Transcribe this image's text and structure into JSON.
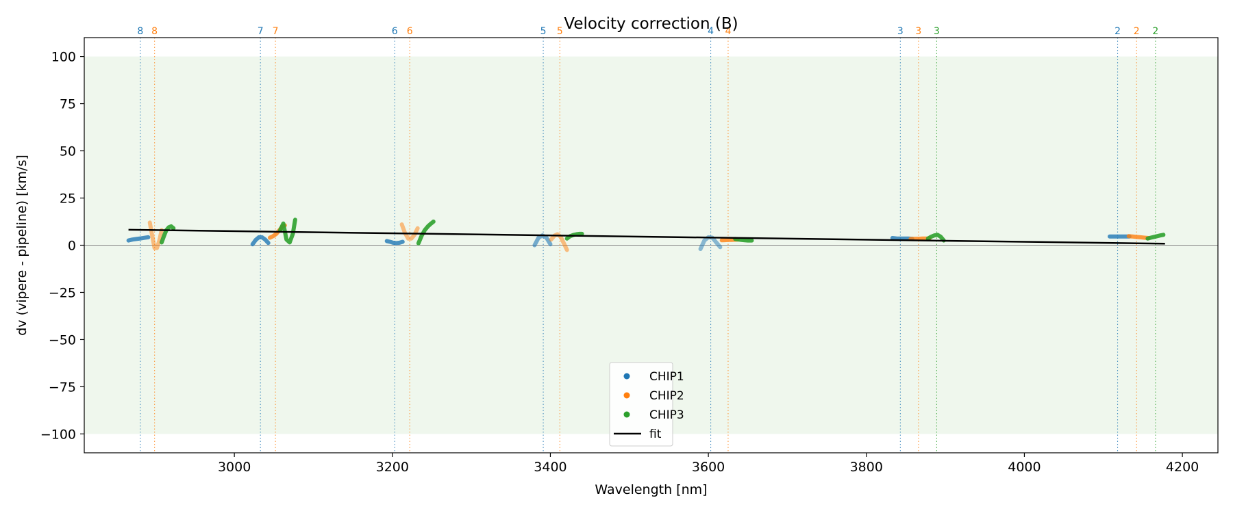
{
  "chart_data": {
    "type": "scatter",
    "title": "Velocity correction (B)",
    "xlabel": "Wavelength [nm]",
    "ylabel": "dv (vipere - pipeline) [km/s]",
    "xlim": [
      2810,
      4245
    ],
    "ylim": [
      -110,
      110
    ],
    "xticks": [
      3000,
      3200,
      3400,
      3600,
      3800,
      4000,
      4200
    ],
    "yticks": [
      100,
      75,
      50,
      25,
      0,
      -25,
      -50,
      -75,
      -100
    ],
    "shaded_band": [
      -100,
      100
    ],
    "zero_line": 0,
    "colors": {
      "CHIP1": "#1f77b4",
      "CHIP2": "#ff7f0e",
      "CHIP3": "#2ca02c",
      "fit": "#000000",
      "band": "#e8f4e6"
    },
    "series": [
      {
        "name": "CHIP1",
        "segments": [
          {
            "order": "8",
            "center": 2881,
            "x": [
              2866,
              2871,
              2876,
              2881,
              2886,
              2891
            ],
            "y": [
              2.5,
              3.0,
              3.3,
              3.6,
              3.9,
              4.2
            ],
            "alpha": 0.8
          },
          {
            "order": "7",
            "center": 3033,
            "x": [
              3023,
              3027,
              3031,
              3035,
              3039,
              3043
            ],
            "y": [
              0.5,
              2.8,
              4.2,
              4.2,
              3.0,
              1.2
            ],
            "alpha": 0.8
          },
          {
            "order": "6",
            "center": 3203,
            "x": [
              3193,
              3197,
              3201,
              3205,
              3209,
              3213
            ],
            "y": [
              2.2,
              1.8,
              1.3,
              1.1,
              1.3,
              1.8
            ],
            "alpha": 0.8
          },
          {
            "order": "5",
            "center": 3391,
            "x": [
              3380,
              3385,
              3390,
              3395,
              3400
            ],
            "y": [
              0.0,
              4.0,
              5.2,
              4.0,
              0.5
            ],
            "alpha": 0.6
          },
          {
            "order": "4",
            "center": 3603,
            "x": [
              3590,
              3595,
              3600,
              3605,
              3610,
              3615
            ],
            "y": [
              -2.0,
              2.5,
              4.2,
              4.0,
              1.5,
              -1.0
            ],
            "alpha": 0.5
          },
          {
            "order": "3",
            "center": 3843,
            "x": [
              3833,
              3838,
              3843,
              3848,
              3853,
              3858
            ],
            "y": [
              3.8,
              3.6,
              3.5,
              3.5,
              3.5,
              3.4
            ],
            "alpha": 0.8
          },
          {
            "order": "2",
            "center": 4118,
            "x": [
              4108,
              4113,
              4118,
              4123,
              4128,
              4133
            ],
            "y": [
              4.6,
              4.6,
              4.6,
              4.6,
              4.6,
              4.6
            ],
            "alpha": 0.8
          }
        ]
      },
      {
        "name": "CHIP2",
        "segments": [
          {
            "order": "8",
            "center": 2899,
            "x": [
              2893,
              2896,
              2899,
              2902,
              2905,
              2908
            ],
            "y": [
              12.0,
              5.0,
              -1.5,
              -1.5,
              2.5,
              8.0
            ],
            "alpha": 0.5
          },
          {
            "order": "7",
            "center": 3052,
            "x": [
              3045,
              3049,
              3053,
              3057,
              3061,
              3064
            ],
            "y": [
              4.0,
              4.8,
              6.0,
              8.0,
              10.0,
              10.5
            ],
            "alpha": 0.8
          },
          {
            "order": "6",
            "center": 3222,
            "x": [
              3212,
              3216,
              3220,
              3224,
              3228,
              3232
            ],
            "y": [
              11.0,
              6.5,
              3.5,
              3.5,
              5.5,
              9.0
            ],
            "alpha": 0.5
          },
          {
            "order": "5",
            "center": 3412,
            "x": [
              3401,
              3405,
              3409,
              3413,
              3417,
              3421
            ],
            "y": [
              3.0,
              5.0,
              5.8,
              4.5,
              1.0,
              -2.5
            ],
            "alpha": 0.5
          },
          {
            "order": "4",
            "center": 3625,
            "x": [
              3617,
              3621,
              3625,
              3629,
              3633,
              3637
            ],
            "y": [
              2.6,
              2.7,
              2.8,
              2.8,
              2.9,
              3.0
            ],
            "alpha": 0.8
          },
          {
            "order": "3",
            "center": 3866,
            "x": [
              3856,
              3861,
              3866,
              3871,
              3876,
              3880
            ],
            "y": [
              3.3,
              3.4,
              3.4,
              3.5,
              3.5,
              3.6
            ],
            "alpha": 0.8
          },
          {
            "order": "2",
            "center": 4142,
            "x": [
              4132,
              4137,
              4142,
              4147,
              4152,
              4157
            ],
            "y": [
              4.8,
              4.6,
              4.4,
              4.2,
              4.0,
              3.8
            ],
            "alpha": 0.8
          }
        ]
      },
      {
        "name": "CHIP3",
        "segments": [
          {
            "order": "",
            "center": 2915,
            "x": [
              2908,
              2911,
              2914,
              2917,
              2920,
              2923
            ],
            "y": [
              1.5,
              5.0,
              8.0,
              9.5,
              10.0,
              9.0
            ],
            "alpha": 0.9
          },
          {
            "order": "",
            "center": 3066,
            "x": [
              3058,
              3062,
              3066,
              3070,
              3074,
              3077
            ],
            "y": [
              8.0,
              11.5,
              3.0,
              1.5,
              6.0,
              13.5
            ],
            "alpha": 0.9
          },
          {
            "order": "",
            "center": 3242,
            "x": [
              3233,
              3237,
              3241,
              3245,
              3249,
              3252
            ],
            "y": [
              1.0,
              5.0,
              8.0,
              10.0,
              11.5,
              12.5
            ],
            "alpha": 0.9
          },
          {
            "order": "",
            "center": 3430,
            "x": [
              3421,
              3425,
              3429,
              3433,
              3437,
              3440
            ],
            "y": [
              3.5,
              4.8,
              5.4,
              5.8,
              6.0,
              6.0
            ],
            "alpha": 0.9
          },
          {
            "order": "",
            "center": 3645,
            "x": [
              3634,
              3638,
              3642,
              3646,
              3650,
              3655
            ],
            "y": [
              3.3,
              3.0,
              2.8,
              2.6,
              2.5,
              2.5
            ],
            "alpha": 0.9
          },
          {
            "order": "3",
            "center": 3889,
            "x": [
              3878,
              3882,
              3886,
              3890,
              3894,
              3898
            ],
            "y": [
              3.5,
              4.5,
              5.2,
              5.5,
              4.5,
              2.5
            ],
            "alpha": 0.9
          },
          {
            "order": "2",
            "center": 4166,
            "x": [
              4156,
              4160,
              4164,
              4168,
              4172,
              4176
            ],
            "y": [
              3.5,
              4.0,
              4.4,
              4.8,
              5.2,
              5.5
            ],
            "alpha": 0.9
          }
        ]
      }
    ],
    "fit": {
      "name": "fit",
      "x": [
        2866,
        4178
      ],
      "y": [
        8.2,
        0.8
      ]
    },
    "legend": {
      "position": "lower center",
      "entries": [
        "CHIP1",
        "CHIP2",
        "CHIP3",
        "fit"
      ]
    }
  }
}
